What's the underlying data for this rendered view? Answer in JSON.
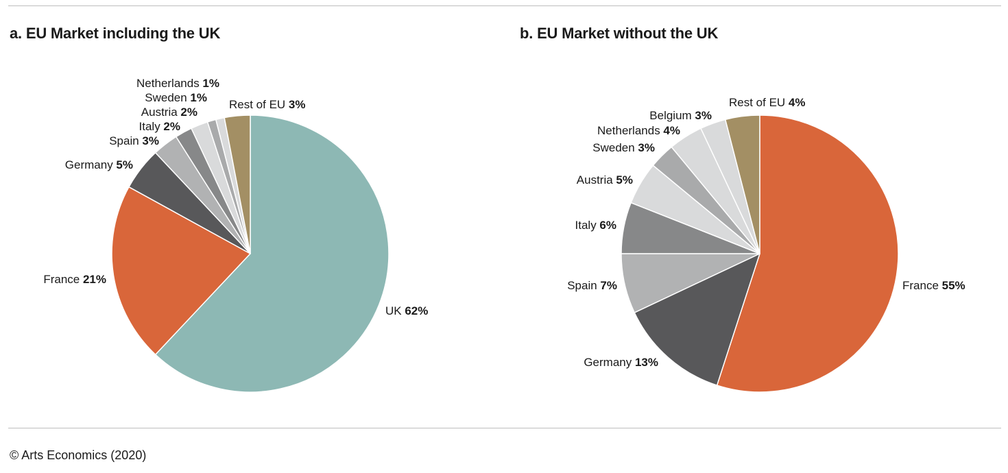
{
  "footer": "© Arts Economics (2020)",
  "colors": {
    "uk": "#8db8b4",
    "france": "#d9663a",
    "germany": "#58585a",
    "spain": "#b1b2b3",
    "italy": "#878889",
    "austria": "#d9dadb",
    "sweden": "#a9aaab",
    "netherlands": "#d9dadb",
    "belgium": "#d9dadb",
    "rest_of_eu": "#a38f64"
  },
  "chart_data": [
    {
      "type": "pie",
      "title": "a. EU Market including the UK",
      "slices": [
        {
          "label": "UK",
          "value": 62,
          "display": "62%",
          "color_key": "uk"
        },
        {
          "label": "France",
          "value": 21,
          "display": "21%",
          "color_key": "france"
        },
        {
          "label": "Germany",
          "value": 5,
          "display": "5%",
          "color_key": "germany"
        },
        {
          "label": "Spain",
          "value": 3,
          "display": "3%",
          "color_key": "spain"
        },
        {
          "label": "Italy",
          "value": 2,
          "display": "2%",
          "color_key": "italy"
        },
        {
          "label": "Austria",
          "value": 2,
          "display": "2%",
          "color_key": "austria"
        },
        {
          "label": "Sweden",
          "value": 1,
          "display": "1%",
          "color_key": "sweden"
        },
        {
          "label": "Netherlands",
          "value": 1,
          "display": "1%",
          "color_key": "netherlands"
        },
        {
          "label": "Rest of EU",
          "value": 3,
          "display": "3%",
          "color_key": "rest_of_eu"
        }
      ]
    },
    {
      "type": "pie",
      "title": "b. EU Market without the UK",
      "slices": [
        {
          "label": "France",
          "value": 55,
          "display": "55%",
          "color_key": "france"
        },
        {
          "label": "Germany",
          "value": 13,
          "display": "13%",
          "color_key": "germany"
        },
        {
          "label": "Spain",
          "value": 7,
          "display": "7%",
          "color_key": "spain"
        },
        {
          "label": "Italy",
          "value": 6,
          "display": "6%",
          "color_key": "italy"
        },
        {
          "label": "Austria",
          "value": 5,
          "display": "5%",
          "color_key": "austria"
        },
        {
          "label": "Sweden",
          "value": 3,
          "display": "3%",
          "color_key": "sweden"
        },
        {
          "label": "Netherlands",
          "value": 4,
          "display": "4%",
          "color_key": "netherlands"
        },
        {
          "label": "Belgium",
          "value": 3,
          "display": "3%",
          "color_key": "belgium"
        },
        {
          "label": "Rest of EU",
          "value": 4,
          "display": "4%",
          "color_key": "rest_of_eu"
        }
      ]
    }
  ]
}
